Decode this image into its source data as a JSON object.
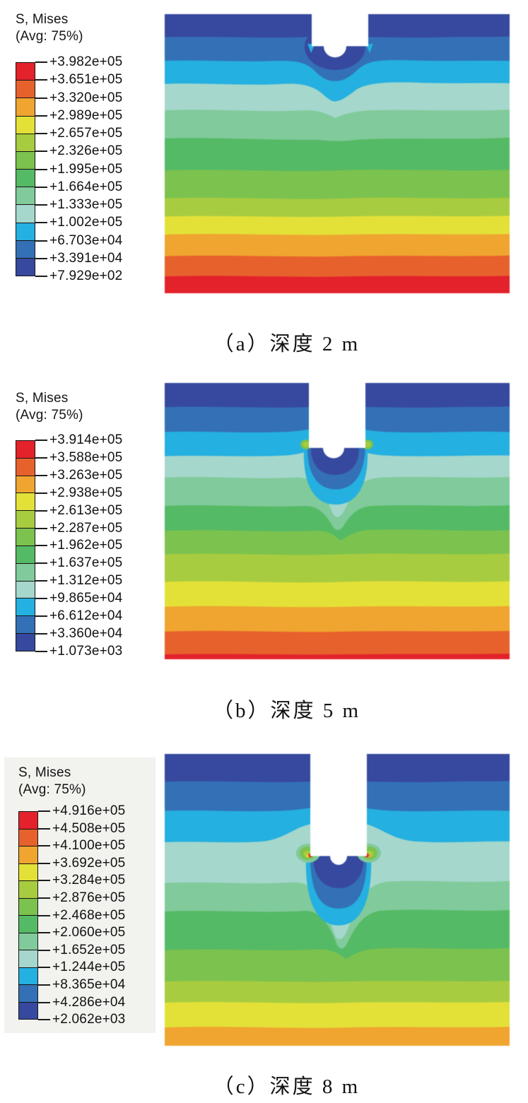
{
  "figure": {
    "panels": [
      {
        "panel_label": "a",
        "caption": "（a）深度 2 m",
        "legend": {
          "title": "S, Mises",
          "subtitle": "(Avg: 75%)",
          "values": [
            "+3.982e+05",
            "+3.651e+05",
            "+3.320e+05",
            "+2.989e+05",
            "+2.657e+05",
            "+2.326e+05",
            "+1.995e+05",
            "+1.664e+05",
            "+1.333e+05",
            "+1.002e+05",
            "+6.703e+04",
            "+3.391e+04",
            "+7.929e+02"
          ]
        }
      },
      {
        "panel_label": "b",
        "caption": "（b）深度 5 m",
        "legend": {
          "title": "S, Mises",
          "subtitle": "(Avg: 75%)",
          "values": [
            "+3.914e+05",
            "+3.588e+05",
            "+3.263e+05",
            "+2.938e+05",
            "+2.613e+05",
            "+2.287e+05",
            "+1.962e+05",
            "+1.637e+05",
            "+1.312e+05",
            "+9.865e+04",
            "+6.612e+04",
            "+3.360e+04",
            "+1.073e+03"
          ]
        }
      },
      {
        "panel_label": "c",
        "caption": "（c）深度 8 m",
        "legend": {
          "title": "S, Mises",
          "subtitle": "(Avg: 75%)",
          "values": [
            "+4.916e+05",
            "+4.508e+05",
            "+4.100e+05",
            "+3.692e+05",
            "+3.284e+05",
            "+2.876e+05",
            "+2.468e+05",
            "+2.060e+05",
            "+1.652e+05",
            "+1.244e+05",
            "+8.365e+04",
            "+4.286e+04",
            "+2.062e+03"
          ]
        }
      }
    ]
  },
  "colors": {
    "bands_max_to_min": [
      "#e3222b",
      "#e7612c",
      "#efa52f",
      "#e3e138",
      "#a8cc3f",
      "#7cc24e",
      "#55ba65",
      "#81ca9b",
      "#a5d7cc",
      "#24b0e0",
      "#3470b6",
      "#36499e"
    ],
    "model_fill": "#ffffff",
    "page_bg": "#ffffff",
    "legend_c_bg": "#f2f2ee",
    "text": "#141414"
  },
  "chart_data": [
    {
      "type": "heatmap",
      "panel": "a",
      "title": "S, Mises",
      "subtitle": "(Avg: 75%)",
      "caption": "（a）深度 2 m",
      "excavation_depth_m": 2,
      "legend_position": "left",
      "legend_labels_top_to_bottom": [
        "+3.982e+05",
        "+3.651e+05",
        "+3.320e+05",
        "+2.989e+05",
        "+2.657e+05",
        "+2.326e+05",
        "+1.995e+05",
        "+1.664e+05",
        "+1.333e+05",
        "+1.002e+05",
        "+6.703e+04",
        "+3.391e+04",
        "+7.929e+02"
      ],
      "contour_levels_min_to_max": [
        792.9,
        33910,
        67030,
        100200,
        133300,
        166400,
        199500,
        232600,
        265700,
        298900,
        332000,
        365100,
        398200
      ],
      "band_colors_min_to_max": [
        "#36499e",
        "#3470b6",
        "#24b0e0",
        "#a5d7cc",
        "#81ca9b",
        "#55ba65",
        "#7cc24e",
        "#a8cc3f",
        "#e3e138",
        "#efa52f",
        "#e7612c",
        "#e3222b"
      ],
      "description": "Von Mises stress contours; horizontal bands increase from minimum (dark blue, top) to maximum (red, bottom); white excavation shaft with domed tip at top center; low-stress bulb beneath tip; cyan stress marks at shaft bottom corners."
    },
    {
      "type": "heatmap",
      "panel": "b",
      "title": "S, Mises",
      "subtitle": "(Avg: 75%)",
      "caption": "（b）深度 5 m",
      "excavation_depth_m": 5,
      "legend_position": "left",
      "legend_labels_top_to_bottom": [
        "+3.914e+05",
        "+3.588e+05",
        "+3.263e+05",
        "+2.938e+05",
        "+2.613e+05",
        "+2.287e+05",
        "+1.962e+05",
        "+1.637e+05",
        "+1.312e+05",
        "+9.865e+04",
        "+6.612e+04",
        "+3.360e+04",
        "+1.073e+03"
      ],
      "contour_levels_min_to_max": [
        1073,
        33600,
        66120,
        98650,
        131200,
        163700,
        196200,
        228700,
        261300,
        293800,
        326300,
        358800,
        391400
      ],
      "band_colors_min_to_max": [
        "#36499e",
        "#3470b6",
        "#24b0e0",
        "#a5d7cc",
        "#81ca9b",
        "#55ba65",
        "#7cc24e",
        "#a8cc3f",
        "#e3e138",
        "#efa52f",
        "#e7612c",
        "#e3222b"
      ],
      "description": "Von Mises stress contours; shaft embedded deeper; dark-blue/blue/cyan low-stress bulbs under domed tip surrounded by pale teal halo; yellow-green concentration specks at shaft bottom corners."
    },
    {
      "type": "heatmap",
      "panel": "c",
      "title": "S, Mises",
      "subtitle": "(Avg: 75%)",
      "caption": "（c）深度 8 m",
      "excavation_depth_m": 8,
      "legend_position": "left",
      "legend_labels_top_to_bottom": [
        "+4.916e+05",
        "+4.508e+05",
        "+4.100e+05",
        "+3.692e+05",
        "+3.284e+05",
        "+2.876e+05",
        "+2.468e+05",
        "+2.060e+05",
        "+1.652e+05",
        "+1.244e+05",
        "+8.365e+04",
        "+4.286e+04",
        "+2.062e+03"
      ],
      "contour_levels_min_to_max": [
        2062,
        42860,
        83650,
        124400,
        165200,
        206000,
        246800,
        287600,
        328400,
        369200,
        410000,
        450800,
        491600
      ],
      "band_colors_min_to_max": [
        "#36499e",
        "#3470b6",
        "#24b0e0",
        "#a5d7cc",
        "#81ca9b",
        "#55ba65",
        "#7cc24e",
        "#a8cc3f",
        "#e3e138",
        "#efa52f",
        "#e7612c",
        "#e3222b"
      ],
      "description": "Von Mises stress contours; deepest shaft; teal wraps shaft tip with green patches and tiny red/orange stress-concentration dots at bottom corners; bottom field only reaches orange band."
    }
  ]
}
